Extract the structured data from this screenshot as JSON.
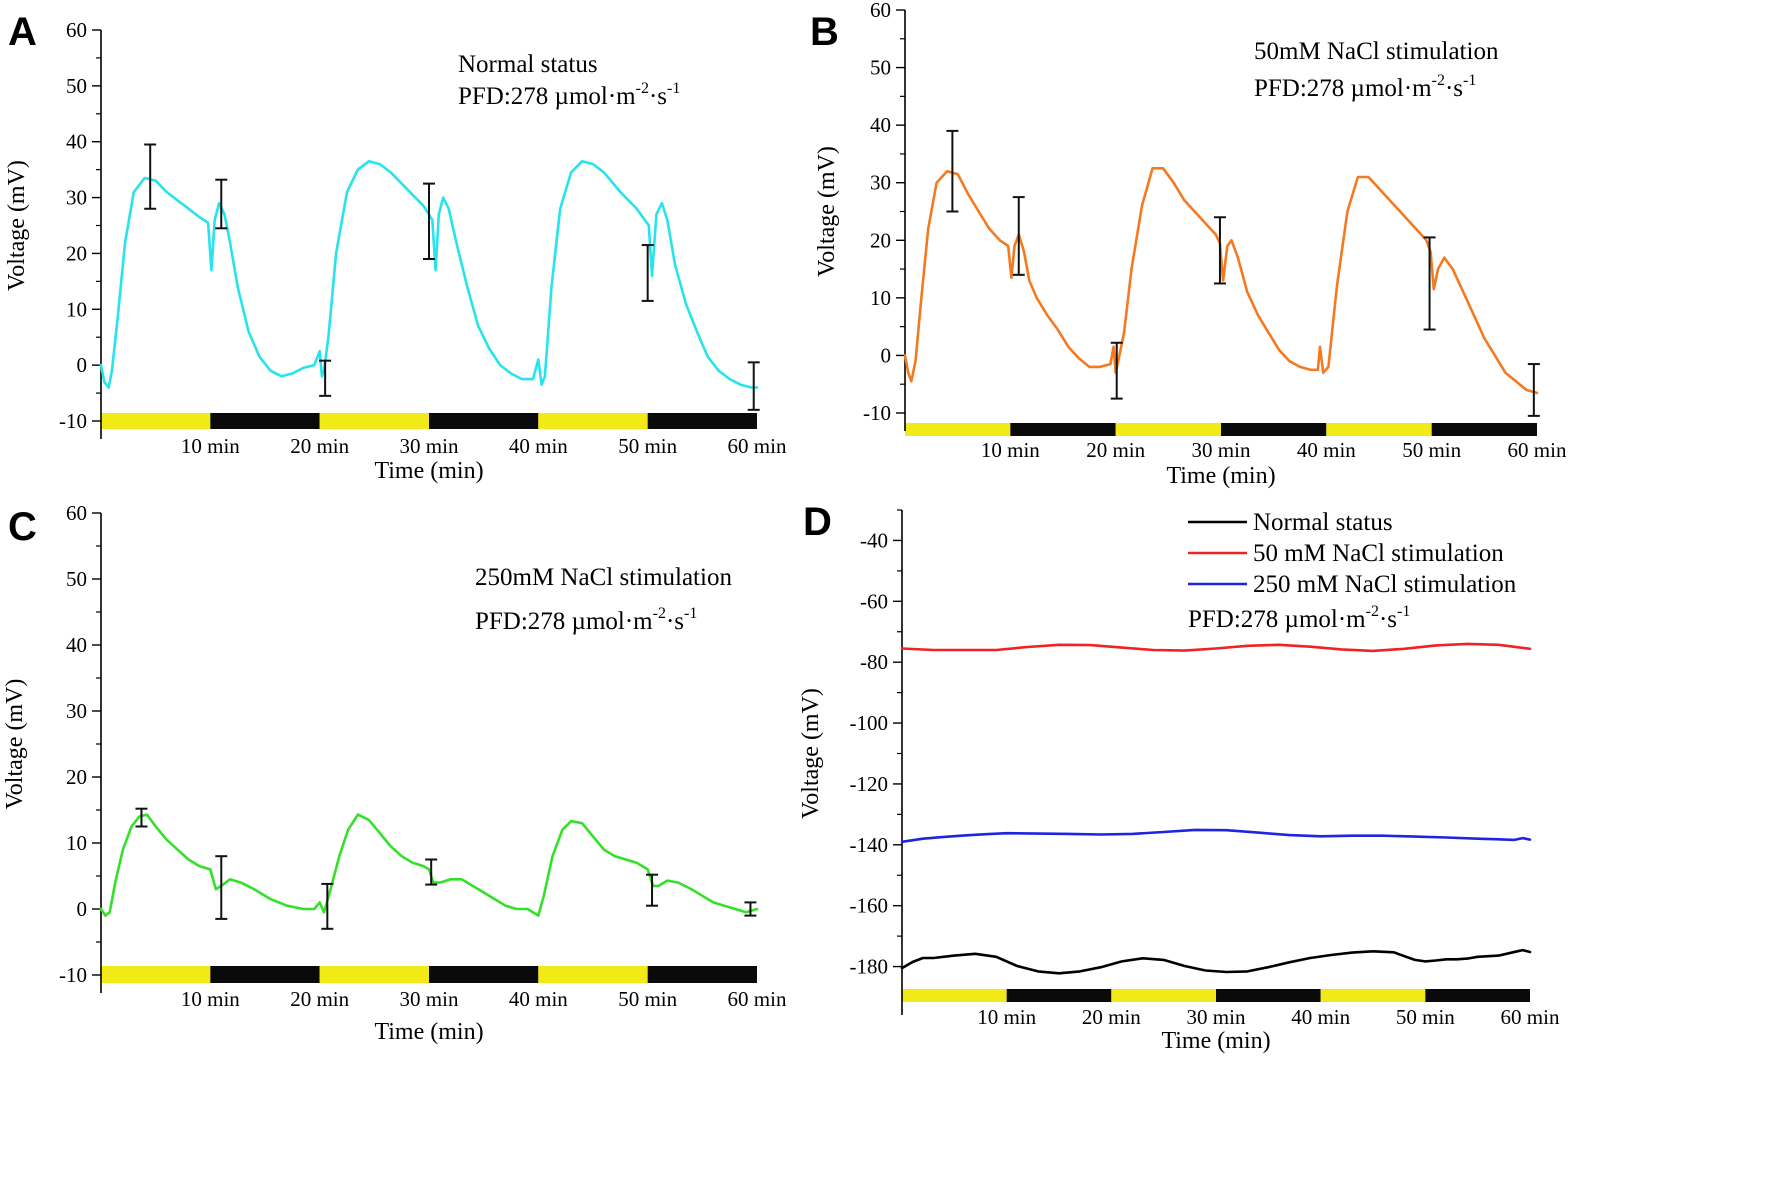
{
  "colors": {
    "light_bar": "#f2ea16",
    "dark_bar": "#0a0a0a",
    "axis": "#000000",
    "error_bar": "#111111"
  },
  "chart_data": [
    {
      "panel": "A",
      "type": "line",
      "title": "",
      "annotation": {
        "line1": "Normal status",
        "pfd_prefix": "PFD:278 µmol·m",
        "pfd_exp1": "-2",
        "pfd_mid": "·s",
        "pfd_exp2": "-1"
      },
      "xlabel": "Time (min)",
      "ylabel": "Voltage (mV)",
      "xlim": [
        0,
        60
      ],
      "ylim": [
        -10,
        60
      ],
      "yticks": [
        "-10",
        "0",
        "10",
        "20",
        "30",
        "40",
        "50",
        "60"
      ],
      "xtick_values": [
        10,
        20,
        30,
        40,
        50,
        60
      ],
      "xtick_labels": [
        "10 min",
        "20 min",
        "30 min",
        "40 min",
        "50 min",
        "60 min"
      ],
      "light_dark_periods": [
        "light",
        "dark",
        "light",
        "dark",
        "light",
        "dark"
      ],
      "series": [
        {
          "name": "Normal status",
          "color": "#27e3ec",
          "x": [
            0,
            0.3,
            0.7,
            1.0,
            1.5,
            2.2,
            3.0,
            4.0,
            5.0,
            6.0,
            7.0,
            8.0,
            9.0,
            9.8,
            10.1,
            10.4,
            10.8,
            11.3,
            11.8,
            12.5,
            13.5,
            14.5,
            15.5,
            16.5,
            17.5,
            18.5,
            19.5,
            20.0,
            20.2,
            20.4,
            20.8,
            21.5,
            22.5,
            23.5,
            24.5,
            25.5,
            26.5,
            28.0,
            29.5,
            30.3,
            30.6,
            30.9,
            31.3,
            31.8,
            32.5,
            33.5,
            34.5,
            35.5,
            36.5,
            37.5,
            38.5,
            39.5,
            40.0,
            40.3,
            40.6,
            41.2,
            42.0,
            43.0,
            44.0,
            45.0,
            46.0,
            47.5,
            49.0,
            50.1,
            50.4,
            50.8,
            51.3,
            51.8,
            52.5,
            53.5,
            54.5,
            55.5,
            56.5,
            57.5,
            58.5,
            59.5,
            60.0
          ],
          "y": [
            0,
            -3,
            -4,
            -1,
            8,
            22,
            31,
            33.5,
            33,
            31,
            29.5,
            28,
            26.5,
            25.5,
            17,
            26,
            29,
            27,
            22,
            14,
            6,
            1.5,
            -1,
            -2,
            -1.5,
            -0.5,
            0,
            2.5,
            -2,
            -1,
            5,
            20,
            31,
            35,
            36.5,
            36,
            34.5,
            31.5,
            28.5,
            26,
            17,
            27,
            30,
            28,
            22,
            14,
            7,
            3,
            0,
            -1.5,
            -2.5,
            -2.5,
            1,
            -3.5,
            -2,
            14,
            28,
            34.5,
            36.5,
            36,
            34.5,
            31,
            28,
            25,
            16,
            27,
            29,
            26,
            18,
            11,
            6,
            1.5,
            -1,
            -2.5,
            -3.5,
            -4,
            -4
          ]
        }
      ],
      "error_bars": [
        {
          "x": 4.5,
          "y": 33.5,
          "lo": 28,
          "hi": 39.5
        },
        {
          "x": 11.0,
          "y": 29,
          "lo": 24.5,
          "hi": 33.2
        },
        {
          "x": 20.5,
          "y": -2,
          "lo": -5.5,
          "hi": 0.8
        },
        {
          "x": 30.0,
          "y": 26,
          "lo": 19,
          "hi": 32.5
        },
        {
          "x": 50.0,
          "y": 17,
          "lo": 11.5,
          "hi": 21.5
        },
        {
          "x": 59.7,
          "y": -4,
          "lo": -8,
          "hi": 0.5
        }
      ]
    },
    {
      "panel": "B",
      "type": "line",
      "title": "",
      "annotation": {
        "line1": "50mM NaCl stimulation",
        "pfd_prefix": "PFD:278 µmol·m",
        "pfd_exp1": "-2",
        "pfd_mid": "·s",
        "pfd_exp2": "-1"
      },
      "xlabel": "Time (min)",
      "ylabel": "Voltage (mV)",
      "xlim": [
        0,
        60
      ],
      "ylim": [
        -10,
        60
      ],
      "yticks": [
        "-10",
        "0",
        "10",
        "20",
        "30",
        "40",
        "50",
        "60"
      ],
      "xtick_values": [
        10,
        20,
        30,
        40,
        50,
        60
      ],
      "xtick_labels": [
        "10 min",
        "20 min",
        "30 min",
        "40 min",
        "50 min",
        "60 min"
      ],
      "light_dark_periods": [
        "light",
        "dark",
        "light",
        "dark",
        "light",
        "dark"
      ],
      "series": [
        {
          "name": "50mM NaCl stimulation",
          "color": "#f47a22",
          "x": [
            0,
            0.3,
            0.6,
            1.0,
            1.5,
            2.2,
            3.0,
            4.0,
            5.0,
            6.0,
            7.0,
            8.0,
            9.0,
            9.8,
            10.1,
            10.4,
            10.8,
            11.3,
            11.8,
            12.5,
            13.5,
            14.5,
            15.5,
            16.5,
            17.5,
            18.5,
            19.5,
            19.8,
            20.0,
            20.3,
            20.8,
            21.5,
            22.5,
            23.5,
            24.5,
            25.5,
            26.5,
            28.0,
            29.5,
            29.9,
            30.2,
            30.6,
            31.0,
            31.6,
            32.5,
            33.5,
            34.5,
            35.5,
            36.5,
            37.5,
            38.5,
            39.2,
            39.4,
            39.7,
            40.2,
            41.0,
            42.0,
            43.0,
            44.0,
            45.0,
            46.5,
            48.0,
            49.5,
            49.9,
            50.2,
            50.6,
            51.2,
            52.0,
            53.0,
            54.0,
            55.0,
            56.0,
            57.0,
            58.0,
            59.0,
            60.0
          ],
          "y": [
            0,
            -3,
            -4.5,
            -1,
            9,
            22,
            30,
            32,
            31.5,
            28,
            25,
            22,
            20,
            19,
            13.5,
            19,
            21,
            18,
            13,
            10,
            7,
            4.5,
            1.5,
            -0.5,
            -2,
            -2,
            -1.5,
            1.5,
            -3,
            -0.5,
            4,
            15,
            26,
            32.5,
            32.5,
            30,
            27,
            24,
            21,
            19.5,
            13,
            19,
            20,
            17,
            11,
            7,
            4,
            1,
            -1,
            -2,
            -2.5,
            -2.5,
            1.5,
            -3,
            -2,
            12,
            25,
            31,
            31,
            29,
            26,
            23,
            20,
            18,
            11.5,
            15,
            17,
            15,
            11,
            7,
            3,
            0,
            -3,
            -4.5,
            -6,
            -6.5
          ]
        }
      ],
      "error_bars": [
        {
          "x": 4.5,
          "y": 32,
          "lo": 25,
          "hi": 39
        },
        {
          "x": 10.8,
          "y": 21,
          "lo": 14,
          "hi": 27.5
        },
        {
          "x": 20.1,
          "y": -2.5,
          "lo": -7.5,
          "hi": 2.2
        },
        {
          "x": 29.9,
          "y": 18,
          "lo": 12.5,
          "hi": 24
        },
        {
          "x": 49.8,
          "y": 12.5,
          "lo": 4.5,
          "hi": 20.5
        },
        {
          "x": 59.7,
          "y": -6,
          "lo": -10.5,
          "hi": -1.5
        }
      ]
    },
    {
      "panel": "C",
      "type": "line",
      "title": "",
      "annotation": {
        "line1": "250mM NaCl stimulation",
        "pfd_prefix": "PFD:278 µmol·m",
        "pfd_exp1": "-2",
        "pfd_mid": "·s",
        "pfd_exp2": "-1"
      },
      "xlabel": "Time (min)",
      "ylabel": "Voltage (mV)",
      "xlim": [
        0,
        60
      ],
      "ylim": [
        -10,
        60
      ],
      "yticks": [
        "-10",
        "0",
        "10",
        "20",
        "30",
        "40",
        "50",
        "60"
      ],
      "xtick_values": [
        10,
        20,
        30,
        40,
        50,
        60
      ],
      "xtick_labels": [
        "10 min",
        "20 min",
        "30 min",
        "40 min",
        "50 min",
        "60 min"
      ],
      "light_dark_periods": [
        "light",
        "dark",
        "light",
        "dark",
        "light",
        "dark"
      ],
      "series": [
        {
          "name": "250mM NaCl stimulation",
          "color": "#35e02a",
          "x": [
            0,
            0.4,
            0.8,
            1.3,
            2.0,
            2.8,
            3.5,
            4.2,
            5.0,
            6.0,
            7.0,
            8.0,
            9.0,
            10.0,
            10.5,
            11.0,
            11.8,
            12.8,
            14.0,
            15.5,
            17.0,
            18.5,
            19.5,
            20.0,
            20.4,
            21.0,
            21.8,
            22.6,
            23.5,
            24.5,
            25.5,
            26.5,
            27.5,
            28.5,
            29.5,
            30.0,
            30.4,
            31.0,
            32.0,
            33.0,
            34.0,
            35.0,
            36.0,
            37.0,
            38.0,
            39.0,
            40.0,
            40.5,
            41.3,
            42.2,
            43.0,
            44.0,
            45.0,
            46.0,
            47.0,
            48.0,
            49.0,
            50.0,
            50.5,
            51.0,
            51.8,
            52.8,
            54.0,
            55.0,
            56.0,
            57.0,
            58.0,
            59.0,
            60.0
          ],
          "y": [
            0,
            -1,
            -0.5,
            4,
            9,
            12.5,
            14,
            14.3,
            12.5,
            10.5,
            9,
            7.5,
            6.5,
            6,
            3,
            3.5,
            4.5,
            4,
            3,
            1.5,
            0.5,
            0,
            0,
            1,
            -0.5,
            3,
            8,
            12,
            14.3,
            13.5,
            11.5,
            9.5,
            8,
            7,
            6.5,
            6,
            4,
            4,
            4.5,
            4.5,
            3.5,
            2.5,
            1.5,
            0.5,
            0,
            0,
            -1,
            2,
            8,
            12,
            13.3,
            13,
            11,
            9,
            8,
            7.5,
            7,
            6,
            3.5,
            3.5,
            4.3,
            4,
            3,
            2,
            1,
            0.5,
            0,
            -0.5,
            0
          ]
        }
      ],
      "error_bars": [
        {
          "x": 3.7,
          "y": 14,
          "lo": 12.5,
          "hi": 15.2
        },
        {
          "x": 11.0,
          "y": 3,
          "lo": -1.5,
          "hi": 8
        },
        {
          "x": 20.7,
          "y": 0.5,
          "lo": -3,
          "hi": 3.8
        },
        {
          "x": 30.2,
          "y": 5.5,
          "lo": 3.7,
          "hi": 7.5
        },
        {
          "x": 50.4,
          "y": 3,
          "lo": 0.5,
          "hi": 5.2
        },
        {
          "x": 59.4,
          "y": 0,
          "lo": -1,
          "hi": 1
        }
      ]
    },
    {
      "panel": "D",
      "type": "line",
      "title": "",
      "annotation": {
        "pfd_prefix": "PFD:278 µmol·m",
        "pfd_exp1": "-2",
        "pfd_mid": "·s",
        "pfd_exp2": "-1"
      },
      "xlabel": "Time (min)",
      "ylabel": "Voltage (mV)",
      "xlim": [
        0,
        60
      ],
      "ylim": [
        -190,
        -30
      ],
      "yticks": [
        "-180",
        "-160",
        "-140",
        "-120",
        "-100",
        "-80",
        "-60",
        "-40"
      ],
      "xtick_values": [
        10,
        20,
        30,
        40,
        50,
        60
      ],
      "xtick_labels": [
        "10 min",
        "20 min",
        "30 min",
        "40 min",
        "50 min",
        "60 min"
      ],
      "light_dark_periods": [
        "light",
        "dark",
        "light",
        "dark",
        "light",
        "dark"
      ],
      "legend": [
        "Normal status",
        "50 mM NaCl stimulation",
        "250 mM NaCl stimulation"
      ],
      "legend_position": "top-right",
      "series": [
        {
          "name": "Normal status",
          "color": "#000000",
          "x": [
            0,
            1,
            2,
            3,
            5,
            7,
            9,
            11,
            13,
            15,
            17,
            19,
            21,
            23,
            25,
            27,
            29,
            31,
            33,
            35,
            37,
            39,
            41,
            43,
            45,
            47,
            48,
            49,
            50,
            51,
            52,
            53,
            54,
            55,
            56,
            57,
            58,
            58.8,
            59.3,
            60
          ],
          "y": [
            -180.5,
            -178.5,
            -177.2,
            -177.2,
            -176.4,
            -175.8,
            -176.8,
            -179.8,
            -181.6,
            -182.2,
            -181.6,
            -180.2,
            -178.3,
            -177.3,
            -177.8,
            -179.8,
            -181.3,
            -181.8,
            -181.6,
            -180.2,
            -178.6,
            -177.2,
            -176.2,
            -175.4,
            -175.0,
            -175.3,
            -176.6,
            -177.8,
            -178.3,
            -178.0,
            -177.6,
            -177.6,
            -177.4,
            -176.8,
            -176.6,
            -176.4,
            -175.6,
            -175.0,
            -174.6,
            -175.2
          ]
        },
        {
          "name": "50 mM NaCl stimulation",
          "color": "#ef2323",
          "x": [
            0,
            3,
            6,
            9,
            12,
            15,
            18,
            21,
            24,
            27,
            30,
            33,
            36,
            39,
            42,
            45,
            48,
            51,
            54,
            57,
            60
          ],
          "y": [
            -75.5,
            -76.0,
            -76.0,
            -76.0,
            -75.0,
            -74.3,
            -74.4,
            -75.2,
            -76.0,
            -76.2,
            -75.5,
            -74.6,
            -74.3,
            -74.9,
            -75.8,
            -76.3,
            -75.6,
            -74.5,
            -74.0,
            -74.3,
            -75.6
          ]
        },
        {
          "name": "250 mM NaCl stimulation",
          "color": "#1f24e0",
          "x": [
            0,
            2,
            4,
            6,
            8,
            10,
            13,
            16,
            19,
            22,
            25,
            28,
            31,
            34,
            37,
            40,
            43,
            46,
            49,
            52,
            55,
            57,
            58.5,
            59.3,
            60
          ],
          "y": [
            -139.0,
            -138.0,
            -137.4,
            -136.9,
            -136.5,
            -136.2,
            -136.3,
            -136.4,
            -136.6,
            -136.4,
            -135.8,
            -135.1,
            -135.2,
            -136.0,
            -136.8,
            -137.2,
            -137.0,
            -137.0,
            -137.3,
            -137.6,
            -138.0,
            -138.2,
            -138.4,
            -137.8,
            -138.3
          ]
        }
      ],
      "error_bars": []
    }
  ]
}
